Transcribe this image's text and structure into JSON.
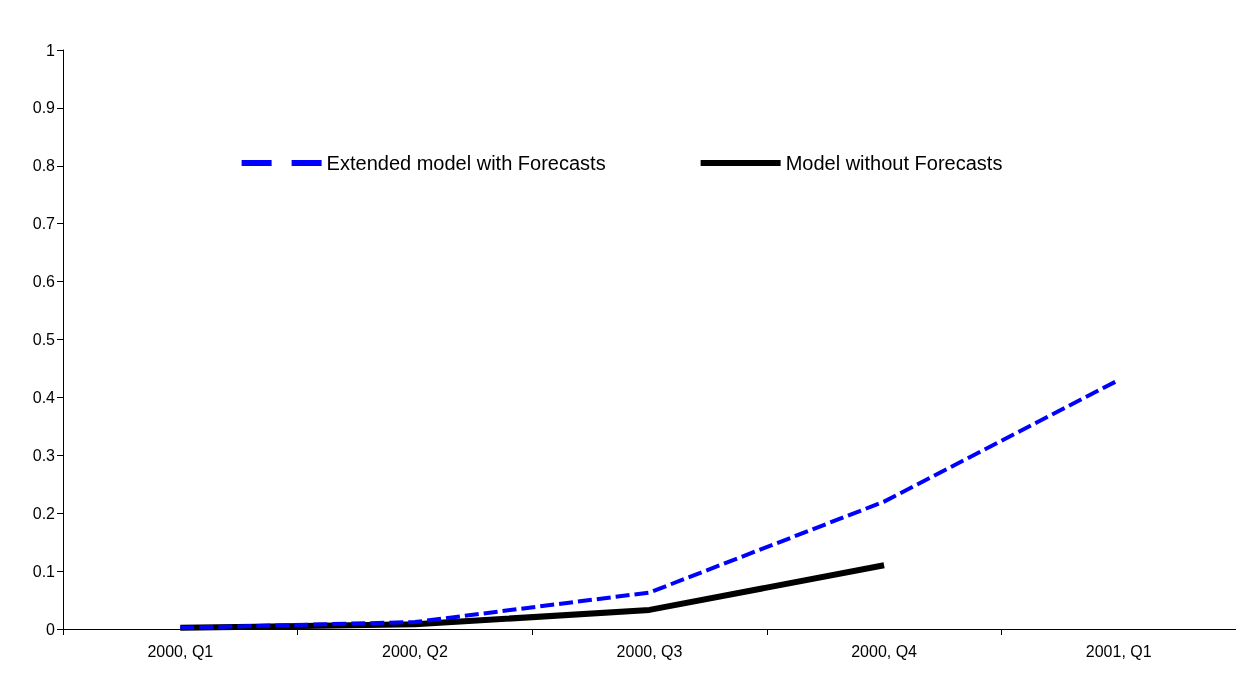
{
  "chart_data": {
    "type": "line",
    "categories": [
      "2000, Q1",
      "2000, Q2",
      "2000, Q3",
      "2000, Q4",
      "2001, Q1"
    ],
    "series": [
      {
        "name": "Extended model with Forecasts",
        "color": "#0000ff",
        "line_style": "dashed",
        "values": [
          0.002,
          0.012,
          0.063,
          0.22,
          0.43
        ]
      },
      {
        "name": "Model without Forecasts",
        "color": "#000000",
        "line_style": "solid",
        "values": [
          0.002,
          0.008,
          0.033,
          0.11,
          null
        ]
      }
    ],
    "ylim": [
      0,
      1
    ],
    "yticks": [
      0,
      0.1,
      0.2,
      0.3,
      0.4,
      0.5,
      0.6,
      0.7,
      0.8,
      0.9,
      1
    ],
    "grid": false,
    "legend": "top",
    "marker": "none"
  }
}
